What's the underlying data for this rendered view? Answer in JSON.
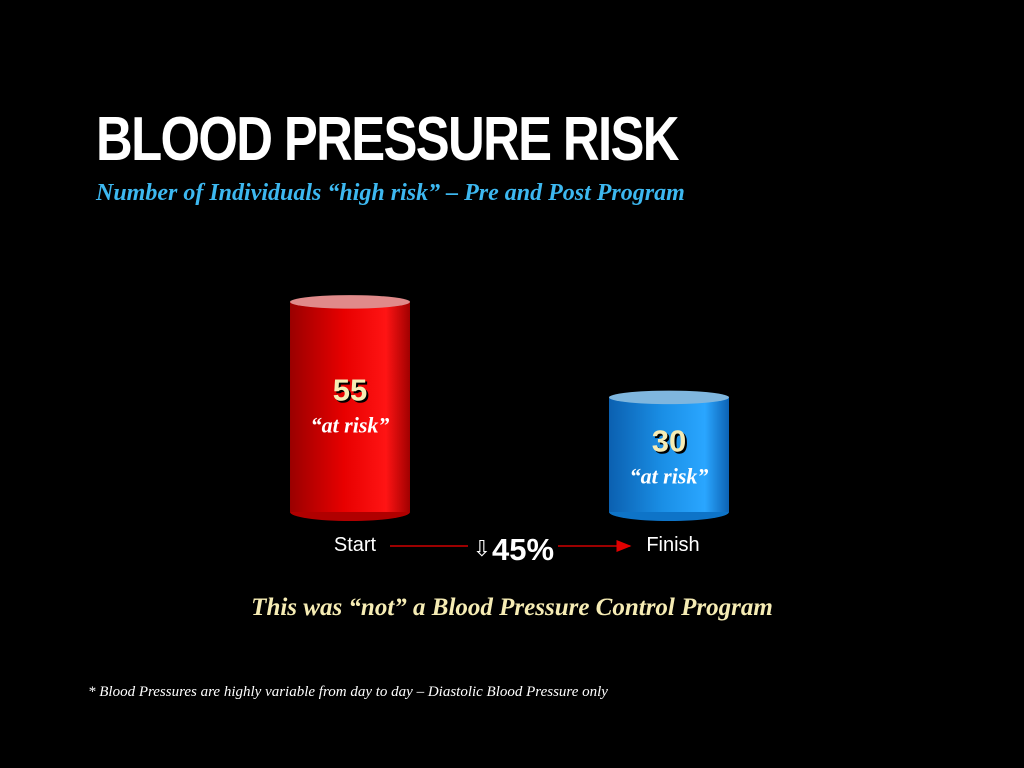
{
  "slide": {
    "title": "BLOOD PRESSURE RISK",
    "subtitle": "Number of Individuals “high risk” – Pre and Post Program",
    "change_arrow": "⇩",
    "change_label": "45%",
    "tagline": "This was “not” a Blood Pressure Control Program",
    "footnote": "* Blood Pressures are highly variable from day to day – Diastolic Blood Pressure only"
  },
  "chart_data": {
    "type": "bar",
    "title": "",
    "xlabel": "",
    "ylabel": "",
    "categories": [
      "Start",
      "Finish"
    ],
    "values": [
      55,
      30
    ],
    "value_labels": [
      "55",
      "30"
    ],
    "sublabels": [
      "“at risk”",
      "“at risk”"
    ],
    "colors": [
      "#e00000",
      "#1a8fe0"
    ],
    "ylim": [
      0,
      60
    ],
    "grid": false,
    "legend": "none"
  }
}
